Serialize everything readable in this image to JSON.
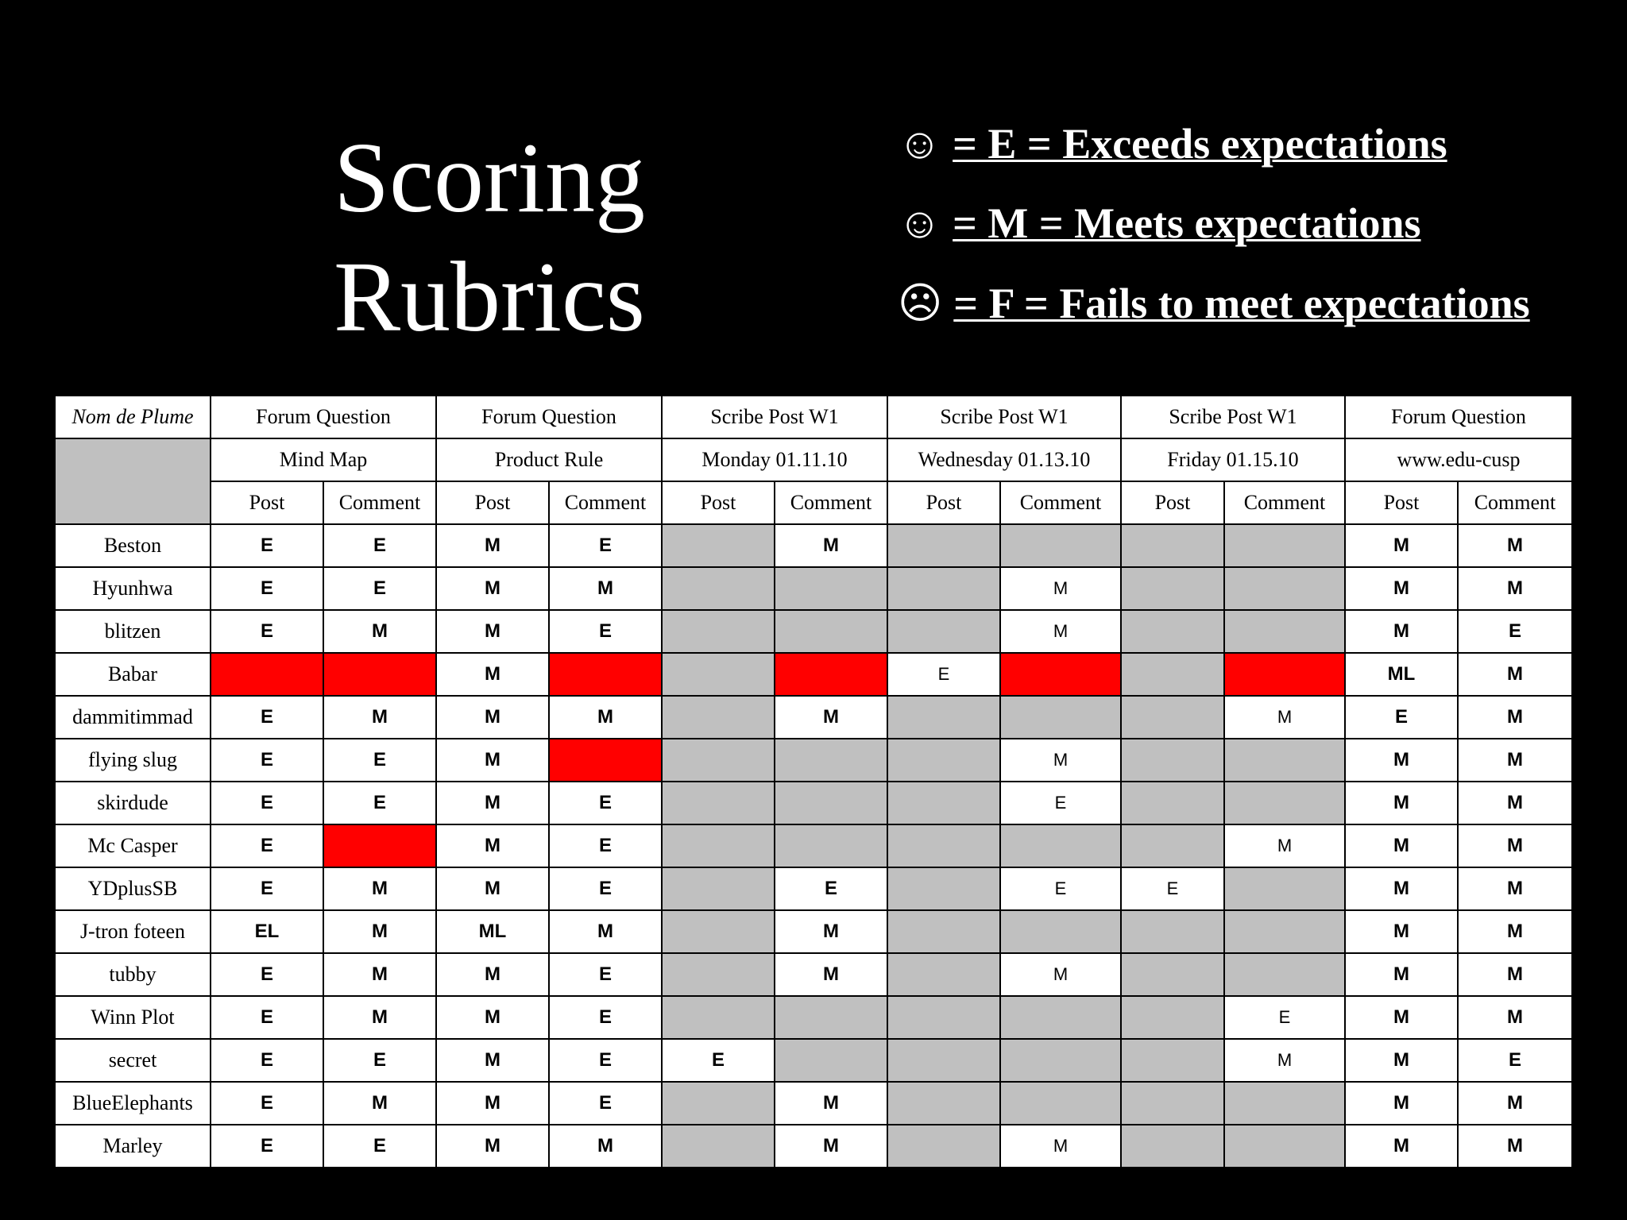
{
  "title": {
    "line1": "Scoring",
    "line2": "Rubrics"
  },
  "legend": [
    {
      "icon": "smiley-face-icon",
      "glyph": "☺",
      "text": "= E = Exceeds expectations"
    },
    {
      "icon": "neutral-face-icon",
      "glyph": "☺",
      "text": "= M = Meets expectations"
    },
    {
      "icon": "frowning-face-icon",
      "glyph": "☹",
      "text": "= F = Fails to meet expectations"
    }
  ],
  "colors": {
    "missing": "#ff0000",
    "not_required": "#c0c0c0"
  },
  "table": {
    "name_header": "Nom de Plume",
    "assignments": [
      {
        "type": "Forum Question",
        "name": "Mind Map"
      },
      {
        "type": "Forum Question",
        "name": "Product Rule"
      },
      {
        "type": "Scribe Post W1",
        "name": "Monday 01.11.10"
      },
      {
        "type": "Scribe Post W1",
        "name": "Wednesday 01.13.10"
      },
      {
        "type": "Scribe Post W1",
        "name": "Friday 01.15.10"
      },
      {
        "type": "Forum Question",
        "name": "www.edu-cusp"
      }
    ],
    "subheaders": [
      "Post",
      "Comment",
      "Post",
      "Comment",
      "Post",
      "Comment",
      "Post",
      "Comment",
      "Post",
      "Comment",
      "Post",
      "Comment"
    ],
    "rows": [
      {
        "name": "Beston",
        "cells": [
          "E",
          "E",
          "M",
          "E",
          "",
          "M",
          "",
          "",
          "",
          "",
          "M",
          "M"
        ],
        "status": [
          "v",
          "v",
          "v",
          "v",
          "g",
          "v",
          "g",
          "g",
          "g",
          "g",
          "v",
          "v"
        ]
      },
      {
        "name": "Hyunhwa",
        "cells": [
          "E",
          "E",
          "M",
          "M",
          "",
          "",
          "",
          "M",
          "",
          "",
          "M",
          "M"
        ],
        "status": [
          "v",
          "v",
          "v",
          "v",
          "g",
          "g",
          "g",
          "s",
          "g",
          "g",
          "v",
          "v"
        ]
      },
      {
        "name": "blitzen",
        "cells": [
          "E",
          "M",
          "M",
          "E",
          "",
          "",
          "",
          "M",
          "",
          "",
          "M",
          "E"
        ],
        "status": [
          "v",
          "v",
          "v",
          "v",
          "g",
          "g",
          "g",
          "s",
          "g",
          "g",
          "v",
          "v"
        ]
      },
      {
        "name": "Babar",
        "cells": [
          "",
          "",
          "M",
          "",
          "",
          "",
          "E",
          "",
          "",
          "",
          "ML",
          "M"
        ],
        "status": [
          "r",
          "r",
          "v",
          "r",
          "g",
          "r",
          "s",
          "r",
          "g",
          "r",
          "v",
          "v"
        ]
      },
      {
        "name": "dammitimmad",
        "cells": [
          "E",
          "M",
          "M",
          "M",
          "",
          "M",
          "",
          "",
          "",
          "M",
          "E",
          "M"
        ],
        "status": [
          "v",
          "v",
          "v",
          "v",
          "g",
          "v",
          "g",
          "g",
          "g",
          "s",
          "v",
          "v"
        ]
      },
      {
        "name": "flying slug",
        "cells": [
          "E",
          "E",
          "M",
          "",
          "",
          "",
          "",
          "M",
          "",
          "",
          "M",
          "M"
        ],
        "status": [
          "v",
          "v",
          "v",
          "r",
          "g",
          "g",
          "g",
          "s",
          "g",
          "g",
          "v",
          "v"
        ]
      },
      {
        "name": "skirdude",
        "cells": [
          "E",
          "E",
          "M",
          "E",
          "",
          "",
          "",
          "E",
          "",
          "",
          "M",
          "M"
        ],
        "status": [
          "v",
          "v",
          "v",
          "v",
          "g",
          "g",
          "g",
          "s",
          "g",
          "g",
          "v",
          "v"
        ]
      },
      {
        "name": "Mc Casper",
        "cells": [
          "E",
          "",
          "M",
          "E",
          "",
          "",
          "",
          "",
          "",
          "M",
          "M",
          "M"
        ],
        "status": [
          "v",
          "r",
          "v",
          "v",
          "g",
          "g",
          "g",
          "g",
          "g",
          "s",
          "v",
          "v"
        ]
      },
      {
        "name": "YDplusSB",
        "cells": [
          "E",
          "M",
          "M",
          "E",
          "",
          "E",
          "",
          "E",
          "E",
          "",
          "M",
          "M"
        ],
        "status": [
          "v",
          "v",
          "v",
          "v",
          "g",
          "v",
          "g",
          "s",
          "s",
          "g",
          "v",
          "v"
        ]
      },
      {
        "name": "J-tron foteen",
        "cells": [
          "EL",
          "M",
          "ML",
          "M",
          "",
          "M",
          "",
          "",
          "",
          "",
          "M",
          "M"
        ],
        "status": [
          "v",
          "v",
          "v",
          "v",
          "g",
          "v",
          "g",
          "g",
          "g",
          "g",
          "v",
          "v"
        ]
      },
      {
        "name": "tubby",
        "cells": [
          "E",
          "M",
          "M",
          "E",
          "",
          "M",
          "",
          "M",
          "",
          "",
          "M",
          "M"
        ],
        "status": [
          "v",
          "v",
          "v",
          "v",
          "g",
          "v",
          "g",
          "s",
          "g",
          "g",
          "v",
          "v"
        ]
      },
      {
        "name": "Winn Plot",
        "cells": [
          "E",
          "M",
          "M",
          "E",
          "",
          "",
          "",
          "",
          "",
          "E",
          "M",
          "M"
        ],
        "status": [
          "v",
          "v",
          "v",
          "v",
          "g",
          "g",
          "g",
          "g",
          "g",
          "s",
          "v",
          "v"
        ]
      },
      {
        "name": "secret",
        "cells": [
          "E",
          "E",
          "M",
          "E",
          "E",
          "",
          "",
          "",
          "",
          "M",
          "M",
          "E"
        ],
        "status": [
          "v",
          "v",
          "v",
          "v",
          "v",
          "g",
          "g",
          "g",
          "g",
          "s",
          "v",
          "v"
        ]
      },
      {
        "name": "BlueElephants",
        "cells": [
          "E",
          "M",
          "M",
          "E",
          "",
          "M",
          "",
          "",
          "",
          "",
          "M",
          "M"
        ],
        "status": [
          "v",
          "v",
          "v",
          "v",
          "g",
          "v",
          "g",
          "g",
          "g",
          "g",
          "v",
          "v"
        ]
      },
      {
        "name": "Marley",
        "cells": [
          "E",
          "E",
          "M",
          "M",
          "",
          "M",
          "",
          "M",
          "",
          "",
          "M",
          "M"
        ],
        "status": [
          "v",
          "v",
          "v",
          "v",
          "g",
          "v",
          "g",
          "s",
          "g",
          "g",
          "v",
          "v"
        ]
      }
    ]
  }
}
